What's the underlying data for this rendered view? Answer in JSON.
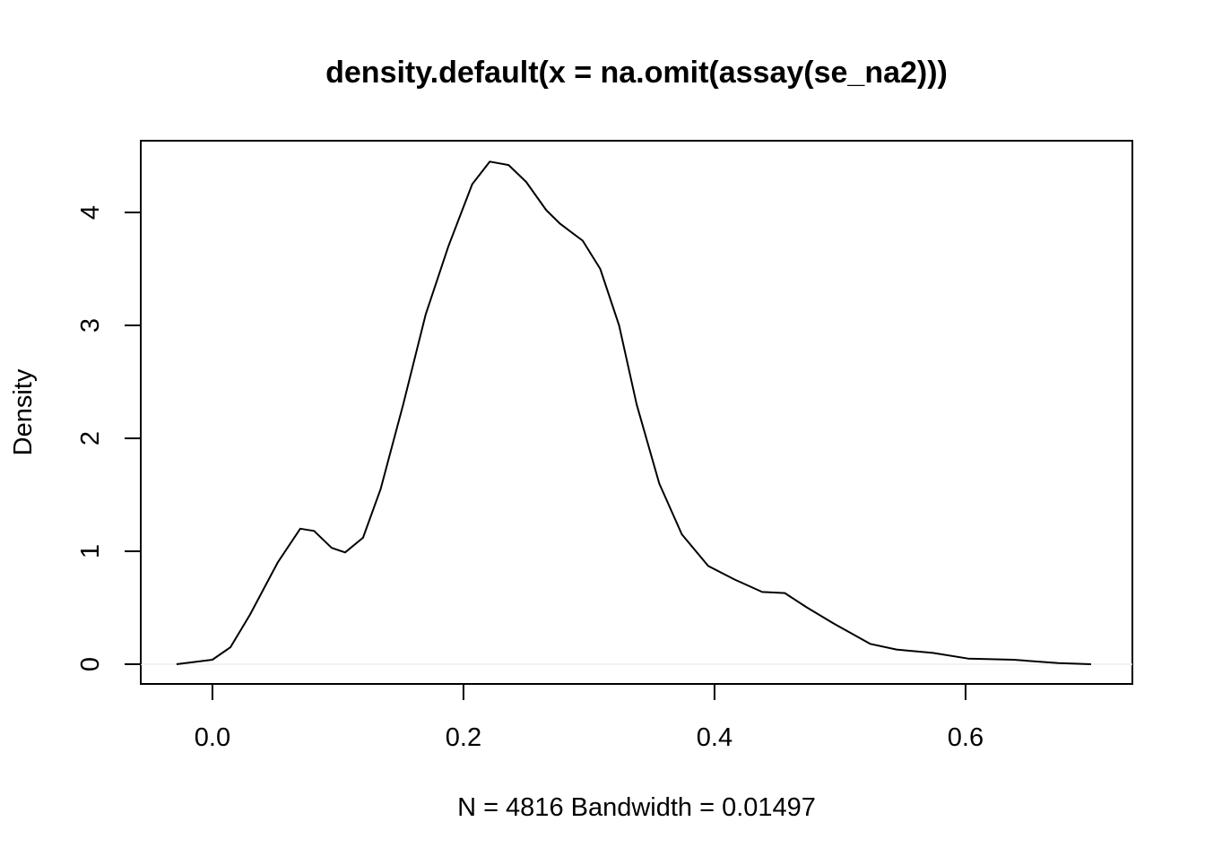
{
  "chart_data": {
    "type": "line",
    "title": "density.default(x = na.omit(assay(se_na2)))",
    "x_label": "N = 4816   Bandwidth = 0.01497",
    "y_label": "Density",
    "x": [
      -0.0286,
      0.0,
      0.0143,
      0.03,
      0.052,
      0.07,
      0.081,
      0.095,
      0.1057,
      0.12,
      0.134,
      0.152,
      0.17,
      0.188,
      0.207,
      0.221,
      0.236,
      0.25,
      0.266,
      0.277,
      0.295,
      0.309,
      0.324,
      0.338,
      0.356,
      0.374,
      0.395,
      0.416,
      0.438,
      0.456,
      0.474,
      0.495,
      0.524,
      0.545,
      0.574,
      0.602,
      0.638,
      0.674,
      0.7
    ],
    "values": [
      0,
      0.04,
      0.15,
      0.44,
      0.9,
      1.2,
      1.18,
      1.03,
      0.99,
      1.12,
      1.55,
      2.3,
      3.1,
      3.7,
      4.25,
      4.45,
      4.42,
      4.27,
      4.02,
      3.9,
      3.75,
      3.5,
      3.0,
      2.3,
      1.6,
      1.15,
      0.87,
      0.75,
      0.64,
      0.63,
      0.5,
      0.36,
      0.18,
      0.13,
      0.1,
      0.05,
      0.04,
      0.01,
      0
    ],
    "color": "#000000",
    "xlim": [
      -0.0571,
      0.7329
    ],
    "ylim": [
      -0.1746,
      4.635
    ],
    "xticks": [
      {
        "value": 0,
        "label": "0.0"
      },
      0.2,
      0.4,
      0.6
    ],
    "yticks": [
      0,
      1,
      2,
      3,
      4
    ]
  }
}
